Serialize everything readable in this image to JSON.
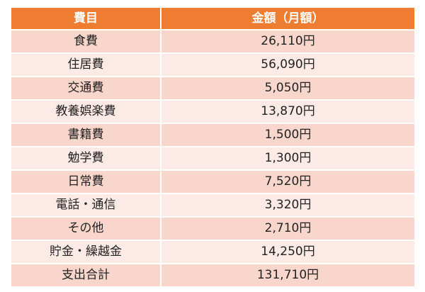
{
  "header": {
    "col1": "費目",
    "col2": "金額（月額）"
  },
  "rows": [
    {
      "item": "食費",
      "amount": "26,110円"
    },
    {
      "item": "住居費",
      "amount": "56,090円"
    },
    {
      "item": "交通費",
      "amount": "5,050円"
    },
    {
      "item": "教養娯楽費",
      "amount": "13,870円"
    },
    {
      "item": "書籍費",
      "amount": "1,500円"
    },
    {
      "item": "勉学費",
      "amount": "1,300円"
    },
    {
      "item": "日常費",
      "amount": "7,520円"
    },
    {
      "item": "電話・通信",
      "amount": "3,320円"
    },
    {
      "item": "その他",
      "amount": "2,710円"
    },
    {
      "item": "貯金・繰越金",
      "amount": "14,250円"
    },
    {
      "item": "支出合計",
      "amount": "131,710円"
    }
  ],
  "colors": {
    "header_bg": "#ee7d31",
    "row_odd_bg": "#f9d6cb",
    "row_even_bg": "#fceae6"
  }
}
